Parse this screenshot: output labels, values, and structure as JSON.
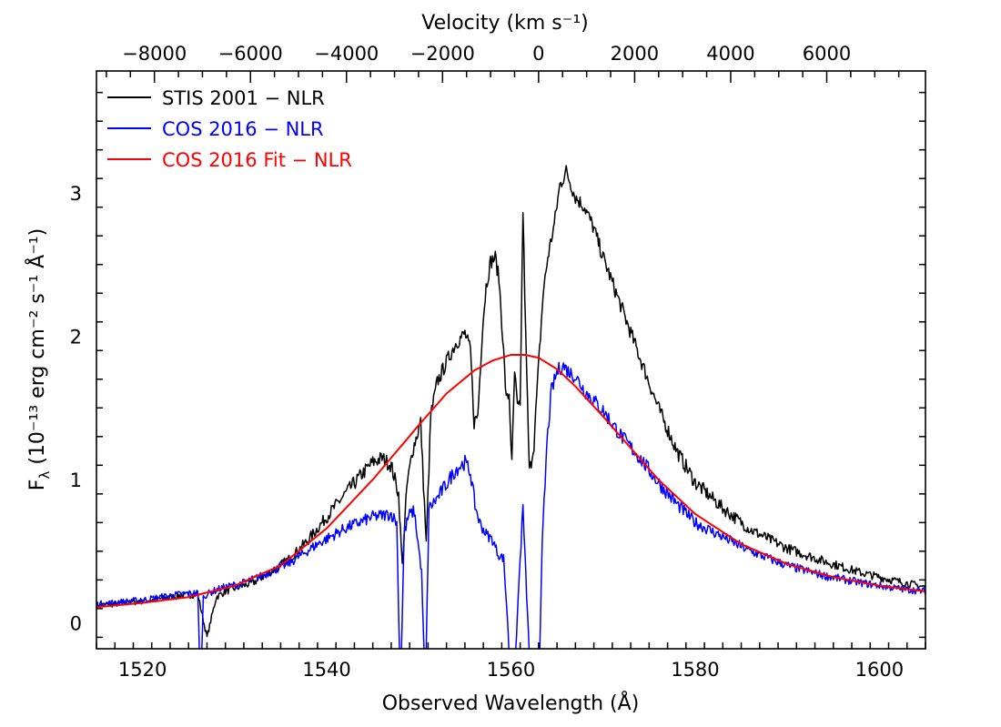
{
  "chart_data": {
    "type": "line",
    "xlabel": "Observed Wavelength (Å)",
    "x2label": "Velocity (km s⁻¹)",
    "ylabel_main": "F",
    "ylabel_sub": "λ",
    "ylabel_rest": " (10⁻¹³ erg cm⁻² s⁻¹ Å⁻¹)",
    "xlim": [
      1515,
      1605
    ],
    "ylim": [
      -0.18,
      3.85
    ],
    "x_ticks": [
      1520,
      1540,
      1560,
      1580,
      1600
    ],
    "x_tick_labels": [
      "1520",
      "1540",
      "1560",
      "1580",
      "1600"
    ],
    "y_ticks": [
      0,
      1,
      2,
      3
    ],
    "y_tick_labels": [
      "0",
      "1",
      "2",
      "3"
    ],
    "v_ticks": [
      -8000,
      -6000,
      -4000,
      -2000,
      0,
      2000,
      4000,
      6000
    ],
    "v_tick_labels": [
      "−8000",
      "−6000",
      "−4000",
      "−2000",
      "0",
      "2000",
      "4000",
      "6000"
    ],
    "velocity_zero_wavelength": 1563.0,
    "legend_position": "top-left",
    "series": [
      {
        "name": "STIS 2001 − NLR",
        "color": "#000000",
        "x": [
          1515,
          1518,
          1521,
          1524,
          1526,
          1527,
          1528,
          1529,
          1530,
          1532,
          1534,
          1536,
          1538,
          1540,
          1542,
          1544,
          1545,
          1546,
          1547,
          1547.8,
          1548.2,
          1548.7,
          1549.3,
          1550.2,
          1550.8,
          1551.3,
          1552,
          1553,
          1554,
          1555,
          1555.6,
          1556,
          1556.4,
          1556.9,
          1557.3,
          1557.8,
          1558.3,
          1558.7,
          1559.1,
          1559.5,
          1559.8,
          1560.1,
          1560.4,
          1560.7,
          1561,
          1561.3,
          1561.6,
          1562,
          1562.5,
          1563,
          1563.5,
          1564,
          1564.7,
          1565.3,
          1566,
          1567,
          1568,
          1569,
          1570,
          1572,
          1574,
          1576,
          1578,
          1580,
          1583,
          1586,
          1590,
          1594,
          1598,
          1602,
          1605
        ],
        "y": [
          0.12,
          0.14,
          0.16,
          0.19,
          0.2,
          -0.1,
          0.18,
          0.22,
          0.24,
          0.28,
          0.36,
          0.45,
          0.58,
          0.74,
          0.9,
          1.05,
          1.12,
          1.15,
          1.1,
          0.9,
          0.4,
          0.95,
          1.2,
          1.4,
          0.55,
          1.45,
          1.68,
          1.82,
          1.95,
          2.02,
          1.9,
          1.4,
          1.45,
          2.05,
          2.35,
          2.52,
          2.55,
          2.4,
          2.0,
          1.55,
          1.6,
          1.1,
          1.75,
          1.5,
          1.5,
          2.88,
          2.0,
          1.05,
          1.25,
          1.8,
          2.3,
          2.55,
          2.78,
          3.05,
          3.15,
          2.97,
          2.9,
          2.75,
          2.55,
          2.2,
          1.85,
          1.5,
          1.2,
          0.98,
          0.8,
          0.65,
          0.52,
          0.43,
          0.35,
          0.29,
          0.25
        ],
        "noise": 0.035
      },
      {
        "name": "COS 2016 − NLR",
        "color": "#0000ff",
        "x": [
          1515,
          1520,
          1524,
          1526,
          1526.3,
          1526.6,
          1527,
          1528,
          1529,
          1531,
          1533,
          1536,
          1539,
          1542,
          1545,
          1547,
          1547.6,
          1548,
          1548.4,
          1548.9,
          1549.5,
          1550.3,
          1550.7,
          1551.1,
          1552,
          1553,
          1554,
          1555,
          1555.6,
          1556.1,
          1556.6,
          1557.3,
          1558,
          1558.6,
          1559.2,
          1559.6,
          1560,
          1560.3,
          1560.8,
          1561.3,
          1561.7,
          1562.2,
          1562.6,
          1563,
          1563.4,
          1563.9,
          1564.4,
          1565,
          1565.6,
          1566.3,
          1567,
          1568,
          1570,
          1572,
          1574,
          1576,
          1578,
          1580,
          1583,
          1586,
          1590,
          1594,
          1598,
          1602,
          1605
        ],
        "y": [
          0.13,
          0.16,
          0.2,
          0.21,
          -0.5,
          0.18,
          0.2,
          0.23,
          0.25,
          0.28,
          0.33,
          0.42,
          0.55,
          0.66,
          0.74,
          0.76,
          0.7,
          -0.5,
          0.62,
          0.75,
          0.78,
          0.35,
          -0.5,
          0.8,
          0.87,
          0.97,
          1.07,
          1.12,
          1.05,
          0.82,
          0.7,
          0.62,
          0.58,
          0.48,
          0.45,
          0.05,
          -0.5,
          -0.5,
          0.2,
          0.8,
          0.2,
          -0.5,
          -0.5,
          -0.5,
          0.55,
          1.25,
          1.62,
          1.75,
          1.8,
          1.75,
          1.72,
          1.62,
          1.48,
          1.3,
          1.15,
          0.98,
          0.83,
          0.7,
          0.6,
          0.5,
          0.4,
          0.33,
          0.28,
          0.24,
          0.22
        ],
        "noise": 0.035
      },
      {
        "name": "COS 2016 Fit − NLR",
        "color": "#ff0000",
        "x": [
          1515,
          1520,
          1525,
          1530,
          1535,
          1540,
          1545,
          1550,
          1553,
          1556,
          1558,
          1560,
          1561.5,
          1563,
          1565,
          1567,
          1570,
          1573,
          1576,
          1580,
          1585,
          1590,
          1595,
          1600,
          1605
        ],
        "y": [
          0.11,
          0.14,
          0.18,
          0.26,
          0.4,
          0.66,
          1.0,
          1.38,
          1.6,
          1.76,
          1.83,
          1.87,
          1.87,
          1.85,
          1.77,
          1.65,
          1.44,
          1.22,
          1.0,
          0.76,
          0.55,
          0.41,
          0.32,
          0.26,
          0.22
        ],
        "noise": 0
      }
    ]
  }
}
